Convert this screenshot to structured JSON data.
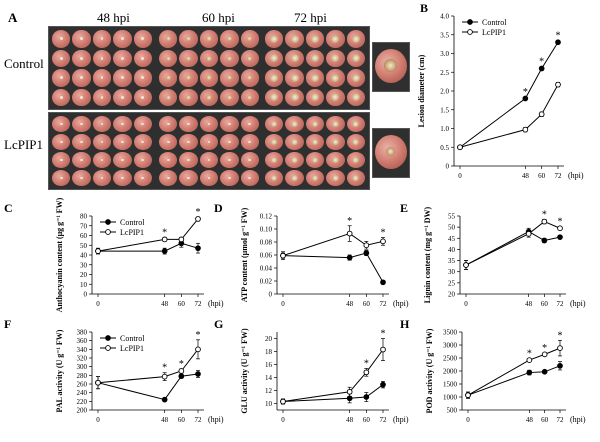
{
  "panel_a": {
    "letter": "A",
    "time_labels": [
      "48 hpi",
      "60 hpi",
      "72 hpi"
    ],
    "row_labels": [
      "Control",
      "LcPIP1"
    ]
  },
  "chart_data": [
    {
      "panel": "B",
      "type": "line",
      "ylabel": "Lesion diameter (cm)",
      "x": [
        0,
        48,
        60,
        72
      ],
      "x_unit_label": "(hpi)",
      "ylim": [
        0,
        4
      ],
      "yticks": [
        0,
        0.5,
        1,
        1.5,
        2,
        2.5,
        3,
        3.5,
        4
      ],
      "yticklabels": [
        "0",
        "0.5",
        "1.0",
        "1.5",
        "2.0",
        "2.5",
        "3.0",
        "3.5",
        "4.0"
      ],
      "legend": "top-left",
      "series": [
        {
          "name": "Control",
          "marker": "filled",
          "values": [
            0.5,
            1.8,
            2.6,
            3.3
          ],
          "err": [
            0,
            0.04,
            0.05,
            0.05
          ]
        },
        {
          "name": "LcPIP1",
          "marker": "open",
          "values": [
            0.5,
            0.97,
            1.38,
            2.17
          ],
          "err": [
            0,
            0.06,
            0.06,
            0.06
          ]
        }
      ],
      "significance": [
        48,
        60,
        72
      ]
    },
    {
      "panel": "C",
      "type": "line",
      "ylabel": "Anthocyanin content (μg g⁻¹ FW)",
      "x": [
        0,
        48,
        60,
        72
      ],
      "x_unit_label": "(hpi)",
      "ylim": [
        0,
        80
      ],
      "yticks": [
        0,
        10,
        20,
        30,
        40,
        50,
        60,
        70,
        80
      ],
      "legend": "top-left",
      "series": [
        {
          "name": "Control",
          "marker": "filled",
          "values": [
            44,
            44,
            52,
            47
          ],
          "err": [
            3,
            3,
            4,
            5
          ]
        },
        {
          "name": "LcPIP1",
          "marker": "open",
          "values": [
            44,
            56,
            56,
            77
          ],
          "err": [
            2,
            2,
            2,
            2
          ]
        }
      ],
      "significance": [
        48,
        72
      ]
    },
    {
      "panel": "D",
      "type": "line",
      "ylabel": "ATP content (μmol g⁻¹ FW)",
      "x": [
        0,
        48,
        60,
        72
      ],
      "x_unit_label": "(hpi)",
      "ylim": [
        0,
        0.12
      ],
      "yticks": [
        0,
        0.02,
        0.04,
        0.06,
        0.08,
        0.1,
        0.12
      ],
      "yticklabels": [
        "0",
        "0.02",
        "0.04",
        "0.06",
        "0.08",
        "0.10",
        "0.12"
      ],
      "series": [
        {
          "marker": "filled",
          "values": [
            0.059,
            0.056,
            0.063,
            0.018
          ],
          "err": [
            0.004,
            0.004,
            0.004,
            0.002
          ]
        },
        {
          "marker": "open",
          "values": [
            0.059,
            0.093,
            0.075,
            0.081
          ],
          "err": [
            0.006,
            0.012,
            0.006,
            0.006
          ]
        }
      ],
      "significance": [
        48,
        72
      ]
    },
    {
      "panel": "E",
      "type": "line",
      "ylabel": "Lignin content (mg g⁻¹ DW)",
      "x": [
        0,
        48,
        60,
        72
      ],
      "x_unit_label": "(hpi)",
      "ylim": [
        20,
        55
      ],
      "yticks": [
        20,
        25,
        30,
        35,
        40,
        45,
        50,
        55
      ],
      "series": [
        {
          "marker": "filled",
          "values": [
            33,
            48,
            44,
            45.5
          ],
          "err": [
            2,
            1.5,
            1,
            0.8
          ]
        },
        {
          "marker": "open",
          "values": [
            33,
            47,
            52.5,
            49.5
          ],
          "err": [
            2,
            1.5,
            1,
            0.8
          ]
        }
      ],
      "significance": [
        60,
        72
      ]
    },
    {
      "panel": "F",
      "type": "line",
      "ylabel": "PAL activity (U g⁻¹ FW)",
      "x": [
        0,
        48,
        60,
        72
      ],
      "x_unit_label": "(hpi)",
      "ylim": [
        200,
        380
      ],
      "yticks": [
        200,
        220,
        240,
        260,
        280,
        300,
        320,
        340,
        360,
        380
      ],
      "legend": "top-left",
      "series": [
        {
          "name": "Control",
          "marker": "filled",
          "values": [
            263,
            224,
            278,
            283
          ],
          "err": [
            14,
            4,
            4,
            8
          ]
        },
        {
          "name": "LcPIP1",
          "marker": "open",
          "values": [
            263,
            277,
            290,
            340
          ],
          "err": [
            14,
            9,
            5,
            22
          ]
        }
      ],
      "significance": [
        48,
        60,
        72
      ]
    },
    {
      "panel": "G",
      "type": "line",
      "ylabel": "GLU activity (U g⁻¹ FW)",
      "x": [
        0,
        48,
        60,
        72
      ],
      "x_unit_label": "(hpi)",
      "ylim": [
        9,
        21
      ],
      "yticks": [
        10,
        12,
        14,
        16,
        18,
        20
      ],
      "series": [
        {
          "marker": "filled",
          "values": [
            10.3,
            10.8,
            11.0,
            12.9
          ],
          "err": [
            0.4,
            0.7,
            0.7,
            0.5
          ]
        },
        {
          "marker": "open",
          "values": [
            10.3,
            11.8,
            14.8,
            18.3
          ],
          "err": [
            0.4,
            0.7,
            0.6,
            1.7
          ]
        }
      ],
      "significance": [
        60,
        72
      ]
    },
    {
      "panel": "H",
      "type": "line",
      "ylabel": "POD activity (U g⁻¹ FW)",
      "x": [
        0,
        48,
        60,
        72
      ],
      "x_unit_label": "(hpi)",
      "ylim": [
        500,
        3500
      ],
      "yticks": [
        500,
        1000,
        1500,
        2000,
        2500,
        3000,
        3500
      ],
      "series": [
        {
          "marker": "filled",
          "values": [
            1070,
            1940,
            1970,
            2200
          ],
          "err": [
            120,
            90,
            50,
            160
          ]
        },
        {
          "marker": "open",
          "values": [
            1070,
            2420,
            2640,
            2880
          ],
          "err": [
            120,
            60,
            60,
            300
          ]
        }
      ],
      "significance": [
        48,
        60,
        72
      ]
    }
  ]
}
